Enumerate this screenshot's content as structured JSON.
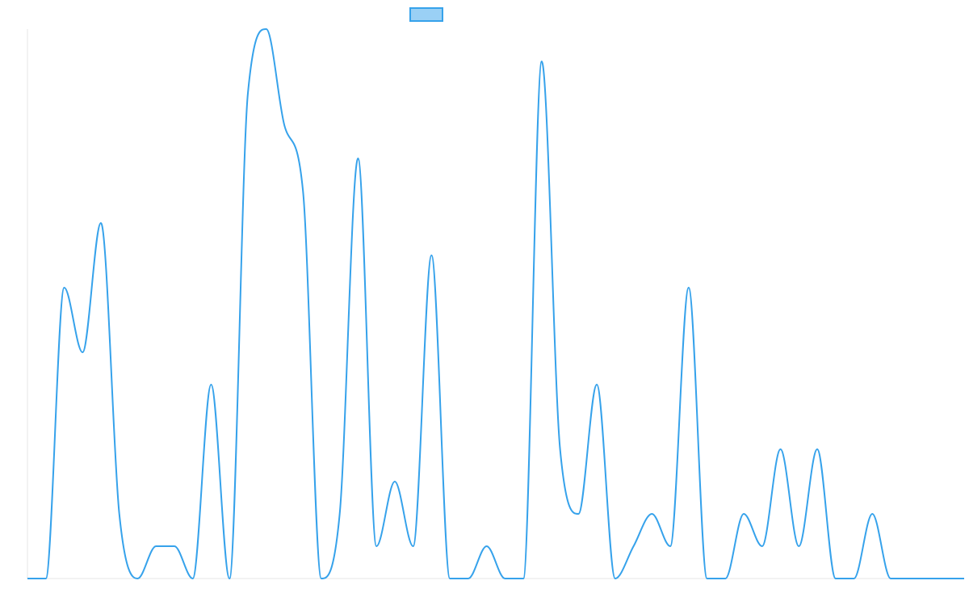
{
  "chart_data": {
    "type": "line",
    "title": "",
    "xlabel": "",
    "ylabel": "",
    "legend": {
      "placement": "top-center",
      "entries": [
        {
          "label": "",
          "color": "#36a2eb",
          "fill": "#9ad0f5"
        }
      ]
    },
    "grid": false,
    "ylim": [
      0,
      17
    ],
    "x": [
      0,
      1,
      2,
      3,
      4,
      5,
      6,
      7,
      8,
      9,
      10,
      11,
      12,
      13,
      14,
      15,
      16,
      17,
      18,
      19,
      20,
      21,
      22,
      23,
      24,
      25,
      26,
      27,
      28,
      29,
      30,
      31,
      32,
      33,
      34,
      35,
      36,
      37,
      38,
      39,
      40,
      41,
      42,
      43,
      44,
      45,
      46,
      47,
      48,
      49,
      50,
      51
    ],
    "series": [
      {
        "name": "",
        "color": "#36a2eb",
        "values": [
          0,
          0,
          9,
          7,
          11,
          2,
          0,
          1,
          1,
          0,
          6,
          0,
          15,
          17,
          14,
          12,
          0,
          2,
          13,
          1,
          3,
          1,
          10,
          0,
          0,
          1,
          0,
          0,
          16,
          4,
          2,
          6,
          0,
          1,
          2,
          1,
          9,
          0,
          0,
          2,
          1,
          4,
          1,
          4,
          0,
          0,
          2,
          0,
          0,
          0,
          0,
          0
        ]
      }
    ]
  }
}
